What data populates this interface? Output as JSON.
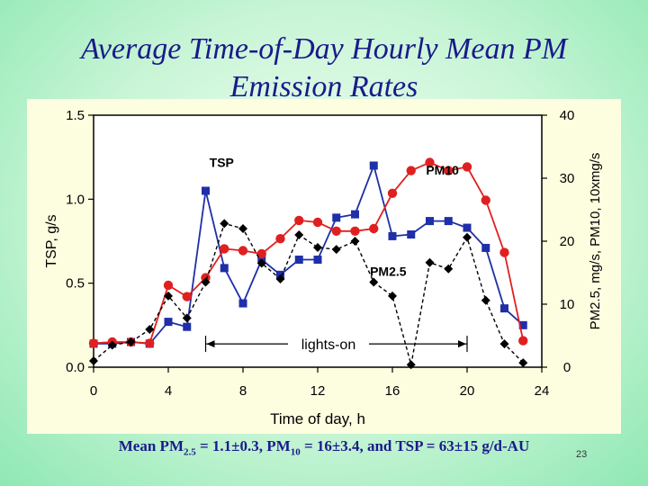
{
  "slide": {
    "title_line1": "Average Time-of-Day Hourly Mean PM",
    "title_line2": "Emission Rates",
    "footnote": {
      "p1": "Mean PM",
      "s1": "2.5",
      "p2": " = 1.1±0.3, PM",
      "s2": "10",
      "p3": " = 16±3.4, and TSP = 63±15 g/d-AU"
    },
    "page_number": "23"
  },
  "chart_data": {
    "type": "line",
    "xlabel": "Time of day, h",
    "ylabel_left": "TSP, g/s",
    "ylabel_right": "PM2.5, mg/s, PM10, 10xmg/s",
    "xlim": [
      0,
      24
    ],
    "ylim_left": [
      0,
      1.5
    ],
    "ylim_right": [
      0,
      40
    ],
    "x_ticks": [
      "0",
      "4",
      "8",
      "12",
      "16",
      "20",
      "24"
    ],
    "y_left_ticks": [
      "0.0",
      "0.5",
      "1.0",
      "1.5"
    ],
    "y_right_ticks": [
      "0",
      "10",
      "20",
      "30",
      "40"
    ],
    "colors": {
      "TSP": "#1f2fa8",
      "PM10": "#e02020",
      "PM2.5": "#000000"
    },
    "series": [
      {
        "name": "TSP",
        "axis": "left",
        "x": [
          0,
          1,
          2,
          3,
          4,
          5,
          6,
          7,
          8,
          9,
          10,
          11,
          12,
          13,
          14,
          15,
          16,
          17,
          18,
          19,
          20,
          21,
          22,
          23
        ],
        "y": [
          0.14,
          0.14,
          0.15,
          0.14,
          0.27,
          0.24,
          1.05,
          0.59,
          0.38,
          0.64,
          0.55,
          0.64,
          0.64,
          0.89,
          0.91,
          1.2,
          0.78,
          0.79,
          0.87,
          0.87,
          0.83,
          0.71,
          0.35,
          0.25
        ]
      },
      {
        "name": "PM10",
        "axis": "right",
        "x": [
          0,
          1,
          2,
          3,
          4,
          5,
          6,
          7,
          8,
          9,
          10,
          11,
          12,
          13,
          14,
          15,
          16,
          17,
          18,
          19,
          20,
          21,
          22,
          23
        ],
        "y": [
          3.8,
          4.0,
          4.0,
          3.8,
          13.0,
          11.2,
          14.2,
          18.8,
          18.5,
          18.0,
          20.4,
          23.3,
          23.0,
          21.6,
          21.6,
          22.0,
          27.6,
          31.2,
          32.5,
          31.2,
          31.8,
          26.5,
          18.2,
          4.2
        ]
      },
      {
        "name": "PM2.5",
        "axis": "right",
        "x": [
          0,
          1,
          2,
          3,
          4,
          5,
          6,
          7,
          8,
          9,
          10,
          11,
          12,
          13,
          14,
          15,
          16,
          17,
          18,
          19,
          20,
          21,
          22,
          23
        ],
        "y": [
          1.0,
          3.5,
          4.0,
          6.0,
          11.3,
          7.8,
          13.5,
          22.8,
          22.0,
          16.5,
          14.0,
          21.0,
          19.0,
          18.7,
          20.0,
          13.5,
          11.3,
          0.4,
          16.6,
          15.6,
          20.6,
          10.6,
          3.7,
          0.7
        ]
      }
    ],
    "annotations": [
      {
        "text": "TSP",
        "x": 6.2,
        "y_right": 31.8
      },
      {
        "text": "PM10",
        "x": 17.8,
        "y_right": 30.6
      },
      {
        "text": "PM2.5",
        "x": 14.8,
        "y_right": 14.5
      },
      {
        "text": "lights-on",
        "x_start": 6,
        "x_end": 20,
        "y_right": 3.7
      }
    ]
  }
}
